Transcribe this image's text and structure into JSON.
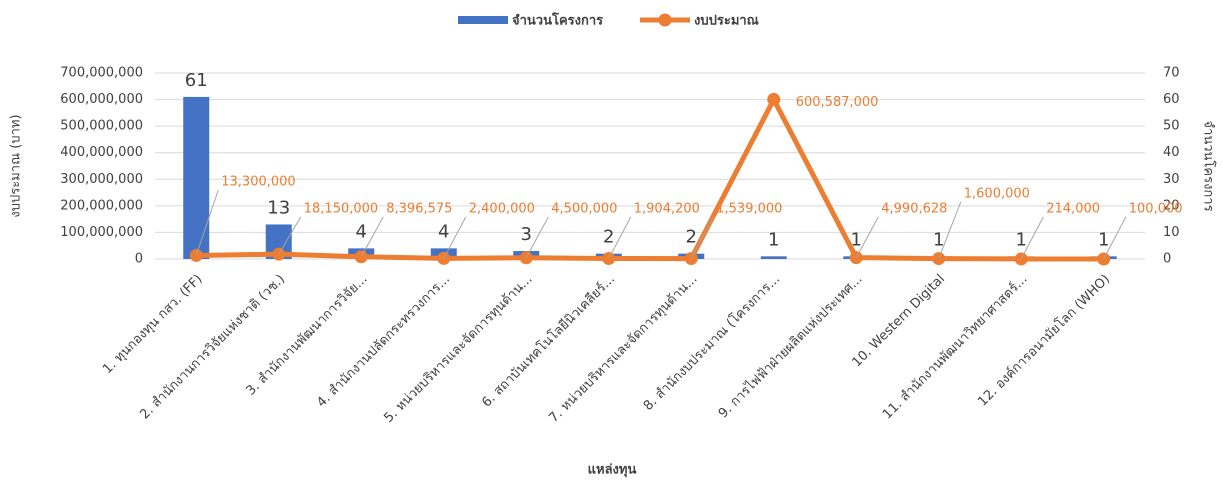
{
  "chart_data": {
    "type": "bar_line",
    "x_label": "แหล่งทุน",
    "y_label": "งบประมาณ (บาท)",
    "y2_label": "จำนวนโครงการ",
    "legend": "top",
    "grid": true,
    "categories": [
      "1. ทุนกองทุน กสว. (FF)",
      "2. สำนักงานการวิจัยแห่งชาติ (วช.)",
      "3. สำนักงานพัฒนาการวิจัย...",
      "4. สำนักงานปลัดกระทรวงการ...",
      "5. หน่วยบริหารและจัดการทุนด้าน...",
      "6. สถาบันเทคโนโลยีนิวเคลียร์...",
      "7. หน่วยบริหารและจัดการทุนด้าน...",
      "8. สำนักงบประมาณ (โครงการ...",
      "9. การไฟฟ้าฝ่ายผลิตแห่งประเทศ...",
      "10. Western Digital",
      "11. สำนักงานพัฒนาวิทยาศาสตร์...",
      "12. องค์การอนามัยโลก (WHO)"
    ],
    "series": [
      {
        "name": "จำนวนโครงการ",
        "type": "bar",
        "axis": "y2",
        "color": "#4472c4",
        "values": [
          61,
          13,
          4,
          4,
          3,
          2,
          2,
          1,
          1,
          1,
          1,
          1
        ]
      },
      {
        "name": "งบประมาณ",
        "type": "line",
        "axis": "y",
        "color": "#ed7d31",
        "values": [
          13300000,
          18150000,
          8396575,
          2400000,
          4500000,
          1904200,
          1539000,
          600587000,
          4990628,
          1600000,
          214000,
          100000
        ],
        "value_labels": [
          "13,300,000",
          "18,150,000",
          "8,396,575",
          "2,400,000",
          "4,500,000",
          "1,904,200",
          "1,539,000",
          "600,587,000",
          "4,990,628",
          "1,600,000",
          "214,000",
          "100,000"
        ]
      }
    ],
    "ylim": [
      0,
      700000000
    ],
    "yticks": [
      0,
      {
        "value": 100000000,
        "label": "100,000,000"
      },
      {
        "value": 200000000,
        "label": "200,000,000"
      },
      {
        "value": 300000000,
        "label": "300,000,000"
      },
      {
        "value": 400000000,
        "label": "400,000,000"
      },
      {
        "value": 500000000,
        "label": "500,000,000"
      },
      {
        "value": 600000000,
        "label": "600,000,000"
      },
      {
        "value": 700000000,
        "label": "700,000,000"
      }
    ],
    "y2lim": [
      0,
      70
    ],
    "y2ticks": [
      0,
      10,
      20,
      30,
      40,
      50,
      60,
      70
    ]
  }
}
